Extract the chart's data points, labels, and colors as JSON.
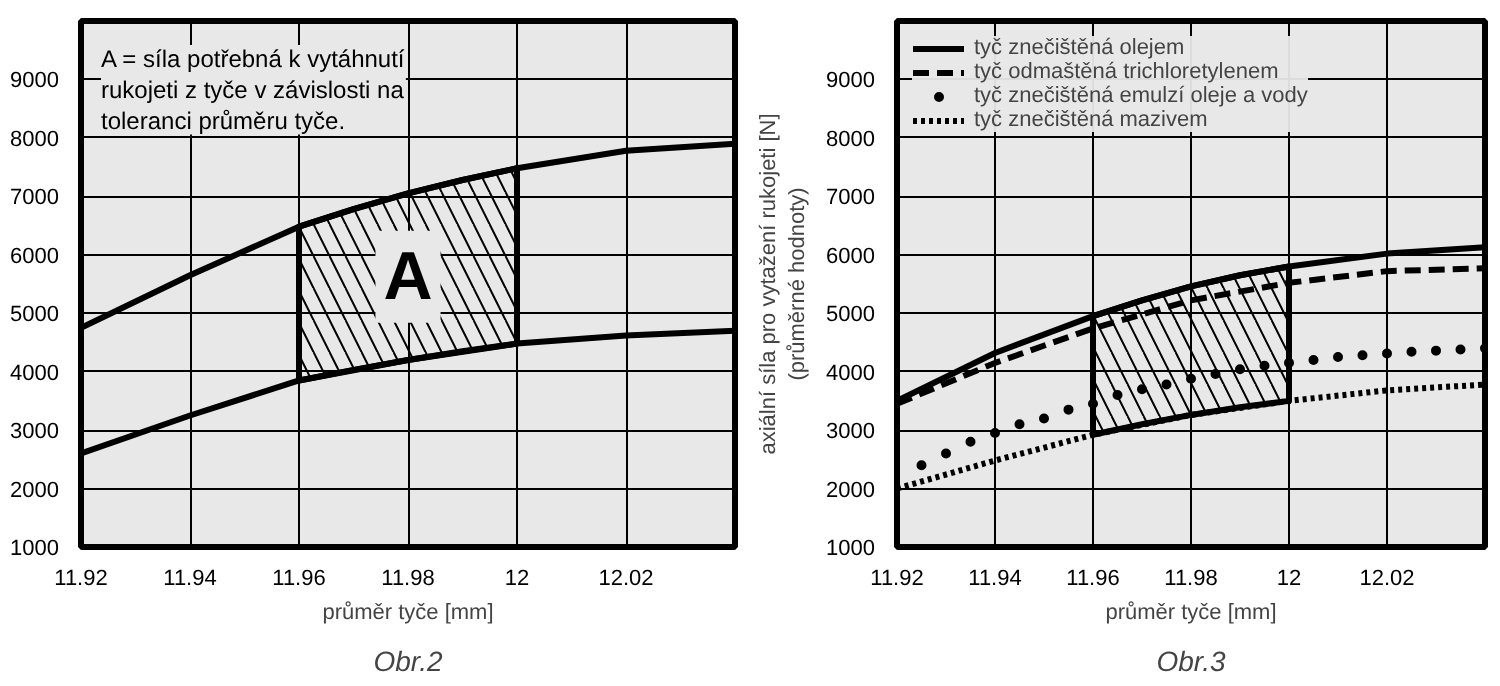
{
  "chart_data": [
    {
      "type": "line",
      "title": "Obr.2",
      "xlabel": "průměr tyče [mm]",
      "xlim": [
        11.92,
        12.04
      ],
      "ylim": [
        1000,
        10000
      ],
      "xticks": [
        11.92,
        11.94,
        11.96,
        11.98,
        12,
        12.02
      ],
      "yticks": [
        1000,
        2000,
        3000,
        4000,
        5000,
        6000,
        7000,
        8000,
        9000
      ],
      "grid": true,
      "legend": false,
      "line_style": "solid",
      "annotations": [
        "A = síla potřebná k vytáhnutí\nrukojeti z tyče v závislosti na\ntoleranci průměru tyče.",
        "A"
      ],
      "series": [
        {
          "color": "#000000",
          "x": [
            11.92,
            11.94,
            11.96,
            11.97,
            11.98,
            11.99,
            12.0,
            12.02,
            12.04
          ],
          "values": [
            4750,
            5650,
            6480,
            6780,
            7050,
            7280,
            7480,
            7780,
            7900
          ],
          "lower": [
            null,
            null,
            3850,
            4030,
            4200,
            4350,
            4480,
            null,
            null
          ],
          "upper": [
            null,
            null,
            6480,
            6780,
            7050,
            7280,
            7480,
            null,
            null
          ]
        },
        {
          "color": "#000000",
          "x": [
            11.92,
            11.94,
            11.96,
            11.98,
            12.0,
            12.02,
            12.04
          ],
          "values": [
            2600,
            3250,
            3850,
            4200,
            4480,
            4620,
            4700
          ]
        }
      ]
    },
    {
      "type": "line",
      "title": "Obr.3",
      "xlabel": "průměr tyče [mm]",
      "ylabel": "axiální síla pro vytažení rukojeti [N]\n(průměrné hodnoty)",
      "xlim": [
        11.92,
        12.04
      ],
      "ylim": [
        1000,
        10000
      ],
      "xticks": [
        11.92,
        11.94,
        11.96,
        11.98,
        12,
        12.02
      ],
      "yticks": [
        1000,
        2000,
        3000,
        4000,
        5000,
        6000,
        7000,
        8000,
        9000
      ],
      "grid": true,
      "legend": "top left",
      "series": [
        {
          "name": "tyč znečištěná olejem",
          "color": "#000000",
          "line_style": "solid",
          "x": [
            11.92,
            11.94,
            11.96,
            11.97,
            11.98,
            11.99,
            12.0,
            12.02,
            12.04
          ],
          "values": [
            3500,
            4320,
            4950,
            5220,
            5460,
            5650,
            5800,
            6020,
            6130
          ],
          "lower": [
            null,
            null,
            2920,
            3100,
            3260,
            3390,
            3500,
            null,
            null
          ],
          "upper": [
            null,
            null,
            4950,
            5220,
            5460,
            5650,
            5800,
            null,
            null
          ]
        },
        {
          "name": "tyč odmaštěná trichloretylenem",
          "color": "#000000",
          "line_style": "dashed",
          "x": [
            11.92,
            11.94,
            11.96,
            11.98,
            12.0,
            12.02,
            12.04
          ],
          "values": [
            3450,
            4150,
            4740,
            5220,
            5520,
            5720,
            5770
          ]
        },
        {
          "name": "tyč znečištěná emulzí oleje a vody",
          "type": "scatter",
          "marker": "circle",
          "color": "#000000",
          "x": [
            11.925,
            11.93,
            11.935,
            11.94,
            11.945,
            11.95,
            11.955,
            11.96,
            11.965,
            11.97,
            11.975,
            11.98,
            11.985,
            11.99,
            11.995,
            12.0,
            12.005,
            12.01,
            12.015,
            12.02,
            12.025,
            12.03,
            12.035,
            12.04
          ],
          "values": [
            2400,
            2600,
            2800,
            2950,
            3100,
            3200,
            3350,
            3450,
            3600,
            3700,
            3780,
            3880,
            3960,
            4040,
            4100,
            4150,
            4200,
            4250,
            4280,
            4310,
            4340,
            4360,
            4380,
            4400
          ]
        },
        {
          "name": "tyč znečištěná mazivem",
          "color": "#000000",
          "line_style": "dotted",
          "x": [
            11.92,
            11.94,
            11.96,
            11.98,
            12.0,
            12.02,
            12.04
          ],
          "values": [
            2000,
            2480,
            2920,
            3260,
            3500,
            3680,
            3780
          ]
        }
      ]
    }
  ]
}
